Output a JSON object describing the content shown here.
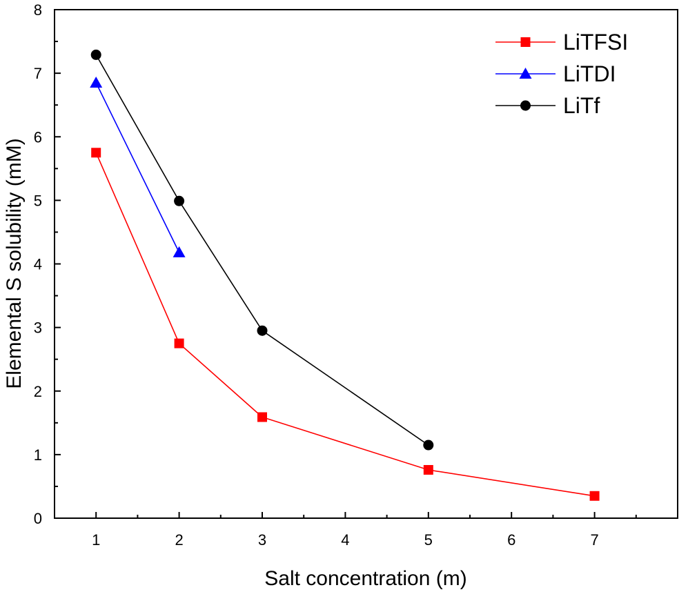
{
  "chart_data": {
    "type": "line",
    "xlabel": "Salt concentration (m)",
    "ylabel": "Elemental S solubility (mM)",
    "xlim": [
      0.5,
      8.0
    ],
    "ylim": [
      0,
      8
    ],
    "xticks": [
      1,
      2,
      3,
      4,
      5,
      6,
      7
    ],
    "yticks": [
      0,
      1,
      2,
      3,
      4,
      5,
      6,
      7,
      8
    ],
    "grid": false,
    "legend_position": "top-right",
    "series": [
      {
        "name": "LiTFSI",
        "color": "#ff0000",
        "marker": "square",
        "x": [
          1,
          2,
          3,
          5,
          7
        ],
        "y": [
          5.75,
          2.75,
          1.59,
          0.76,
          0.35
        ]
      },
      {
        "name": "LiTDI",
        "color": "#0000ff",
        "marker": "triangle",
        "x": [
          1,
          2
        ],
        "y": [
          6.85,
          4.18
        ]
      },
      {
        "name": "LiTf",
        "color": "#000000",
        "marker": "circle",
        "x": [
          1,
          2,
          3,
          5
        ],
        "y": [
          7.29,
          4.99,
          2.95,
          1.15
        ]
      }
    ]
  }
}
